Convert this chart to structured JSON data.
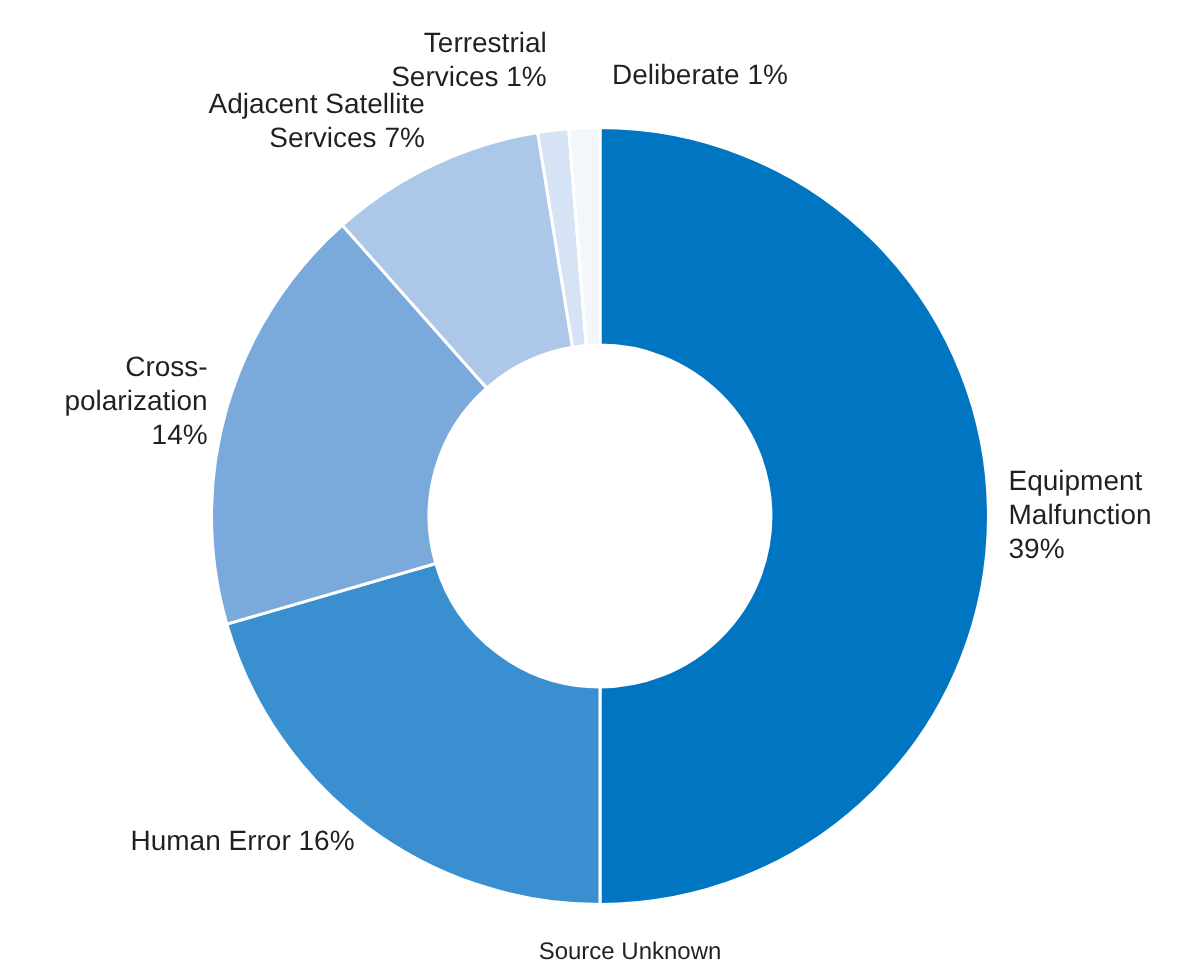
{
  "chart_data": {
    "type": "donut",
    "categories": [
      "Equipment Malfunction",
      "Human Error",
      "Cross-polarization",
      "Adjacent Satellite Services",
      "Terrestrial Services",
      "Deliberate"
    ],
    "values": [
      39,
      16,
      14,
      7,
      1,
      1
    ],
    "value_labels": [
      "39%",
      "16%",
      "14%",
      "7%",
      "1%",
      "1%"
    ],
    "colors": [
      "#0075c1",
      "#3a8fd0",
      "#7aaadc",
      "#adc7e9",
      "#d6e3f4",
      "#f3f6fb"
    ],
    "legend": false,
    "annotations": [
      "Source Unknown"
    ]
  }
}
